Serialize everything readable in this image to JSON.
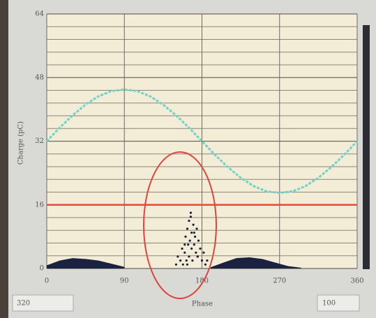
{
  "chart_data": {
    "type": "scatter",
    "x_label": "Phase",
    "y_label": "Charge (pC)",
    "xlim": [
      0,
      360
    ],
    "xticks": [
      0,
      90,
      180,
      270,
      360
    ],
    "ylim": [
      0,
      64
    ],
    "yticks": [
      0,
      16,
      32,
      48,
      64
    ],
    "minor_yticks": [
      3.2,
      6.4,
      9.6,
      12.8,
      19.2,
      22.4,
      25.6,
      28.8,
      35.2,
      38.4,
      41.6,
      44.8,
      51.2,
      54.4,
      57.6,
      60.8
    ],
    "grid": true,
    "threshold": 16,
    "threshold_color": "#e8473f",
    "series": [
      {
        "type": "line",
        "color": "#6fd3c6",
        "x": [
          0,
          15,
          30,
          45,
          60,
          75,
          90,
          105,
          120,
          135,
          150,
          165,
          180,
          195,
          210,
          225,
          240,
          255,
          270,
          285,
          300,
          315,
          330,
          345,
          360
        ],
        "values": [
          32,
          35.4,
          38.5,
          41.2,
          43.3,
          44.6,
          45,
          44.6,
          43.3,
          41.2,
          38.5,
          35.4,
          32,
          28.6,
          25.5,
          22.8,
          20.7,
          19.4,
          19,
          19.4,
          20.7,
          22.8,
          25.5,
          28.6,
          32
        ]
      },
      {
        "type": "area",
        "color": "#1b2140",
        "x": [
          0,
          15,
          30,
          45,
          60,
          75,
          90,
          135,
          190,
          205,
          220,
          235,
          250,
          265,
          280,
          295
        ],
        "values": [
          0.8,
          2,
          2.6,
          2.4,
          2,
          1.2,
          0.4,
          null,
          0.3,
          1.5,
          2.6,
          2.8,
          2.4,
          1.5,
          0.6,
          0.2
        ]
      },
      {
        "type": "scatter",
        "color": "#1b2140",
        "x": [
          150,
          152,
          155,
          157,
          158,
          160,
          161,
          162,
          163,
          164,
          165,
          165,
          166,
          167,
          168,
          168,
          169,
          170,
          171,
          172,
          173,
          174,
          175,
          176,
          178,
          180,
          182,
          184,
          186,
          160,
          163,
          167,
          171,
          175
        ],
        "values": [
          1,
          3,
          2,
          5,
          1,
          4,
          8,
          2,
          10,
          6,
          3,
          12,
          7,
          14,
          5,
          9,
          2,
          11,
          6,
          8,
          4,
          10,
          3,
          7,
          5,
          2,
          4,
          1,
          2,
          6,
          1,
          13,
          9,
          3
        ]
      }
    ]
  },
  "controls": {
    "left_field": "320",
    "right_field": "100"
  }
}
